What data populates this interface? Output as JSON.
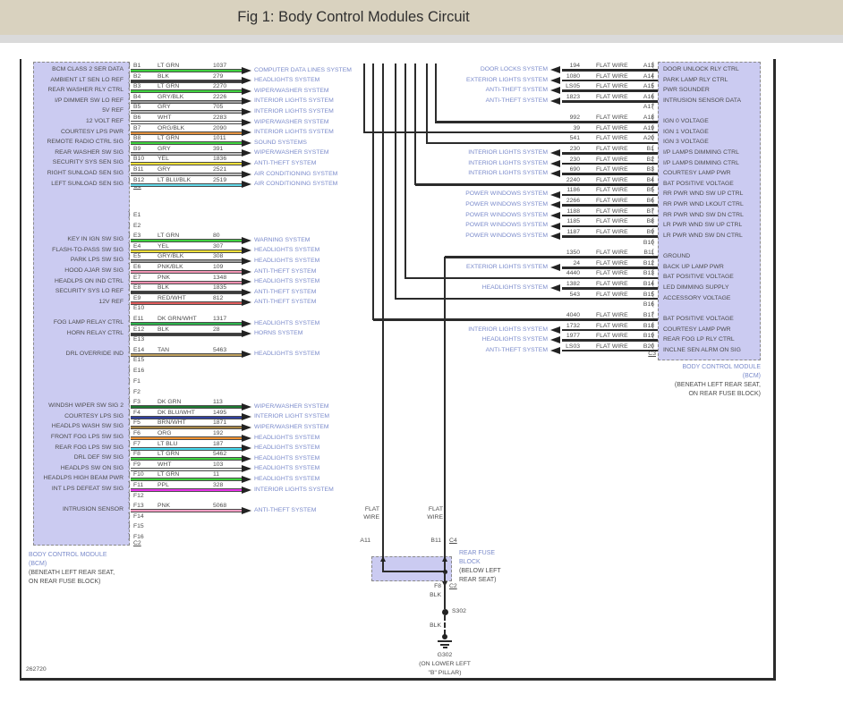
{
  "title": "Fig 1: Body Control Modules Circuit",
  "figure_id": "262720",
  "colors": {
    "titlebar_bg": "#d9d2bf",
    "module_fill": "#cbcbf1",
    "module_border": "#8a8a8a",
    "system_label_blue": "#7b8bcb",
    "text_dark": "#4c4c4c",
    "wire_black": "#2b2b2b"
  },
  "left_module": {
    "name_lines": [
      "BODY CONTROL MODULE",
      "(BCM)"
    ],
    "location_lines": [
      "(BENEATH LEFT REAR SEAT,",
      "ON REAR FUSE BLOCK)"
    ],
    "connector_b_label": "C1",
    "connector_ef_label": "C2",
    "rows_b": [
      {
        "pin": "B1",
        "label": "BCM CLASS 2 SER DATA",
        "color_name": "LT GRN",
        "wire_no": "1037",
        "color": "#3fd23f",
        "system": "COMPUTER DATA LINES SYSTEM"
      },
      {
        "pin": "B2",
        "label": "AMBIENT LT SEN LO REF",
        "color_name": "BLK",
        "wire_no": "279",
        "color": "#3c3c3c",
        "system": "HEADLIGHTS SYSTEM"
      },
      {
        "pin": "B3",
        "label": "REAR WASHER RLY CTRL",
        "color_name": "LT GRN",
        "wire_no": "2270",
        "color": "#3fd23f",
        "system": "WIPER/WASHER SYSTEM"
      },
      {
        "pin": "B4",
        "label": "I/P DIMMER SW LO REF",
        "color_name": "GRY/BLK",
        "wire_no": "2226",
        "color": "#9c9c9c",
        "system": "INTERIOR LIGHTS SYSTEM"
      },
      {
        "pin": "B5",
        "label": "5V REF",
        "color_name": "GRY",
        "wire_no": "705",
        "color": "#bdbdbd",
        "system": "INTERIOR LIGHTS SYSTEM"
      },
      {
        "pin": "B6",
        "label": "12 VOLT REF",
        "color_name": "WHT",
        "wire_no": "2283",
        "color": "#ededed",
        "system": "WIPER/WASHER SYSTEM"
      },
      {
        "pin": "B7",
        "label": "COURTESY LPS PWR",
        "color_name": "ORG/BLK",
        "wire_no": "2090",
        "color": "#e2913f",
        "system": "INTERIOR LIGHTS SYSTEM"
      },
      {
        "pin": "B8",
        "label": "REMOTE RADIO CTRL SIG",
        "color_name": "LT GRN",
        "wire_no": "1011",
        "color": "#3fd23f",
        "system": "SOUND SYSTEMS"
      },
      {
        "pin": "B9",
        "label": "REAR WASHER SW SIG",
        "color_name": "GRY",
        "wire_no": "391",
        "color": "#bdbdbd",
        "system": "WIPER/WASHER SYSTEM"
      },
      {
        "pin": "B10",
        "label": "SECURITY SYS SEN SIG",
        "color_name": "YEL",
        "wire_no": "1836",
        "color": "#f0e03a",
        "system": "ANTI-THEFT SYSTEM"
      },
      {
        "pin": "B11",
        "label": "RIGHT SUNLOAD SEN SIG",
        "color_name": "GRY",
        "wire_no": "2521",
        "color": "#bdbdbd",
        "system": "AIR CONDITIONING SYSTEM"
      },
      {
        "pin": "B12",
        "label": "LEFT SUNLOAD SEN SIG",
        "color_name": "LT BLU/BLK",
        "wire_no": "2519",
        "color": "#62d9e9",
        "system": "AIR CONDITIONING SYSTEM"
      }
    ],
    "rows_e": [
      {
        "pin": "E1"
      },
      {
        "pin": "E2"
      },
      {
        "pin": "E3",
        "label": "KEY IN IGN SW SIG",
        "color_name": "LT GRN",
        "wire_no": "80",
        "color": "#3fd23f",
        "system": "WARNING SYSTEM"
      },
      {
        "pin": "E4",
        "label": "FLASH-TO-PASS SW SIG",
        "color_name": "YEL",
        "wire_no": "307",
        "color": "#f0e03a",
        "system": "HEADLIGHTS SYSTEM"
      },
      {
        "pin": "E5",
        "label": "PARK LPS SW SIG",
        "color_name": "GRY/BLK",
        "wire_no": "308",
        "color": "#9c9c9c",
        "system": "HEADLIGHTS SYSTEM"
      },
      {
        "pin": "E6",
        "label": "HOOD AJAR SW SIG",
        "color_name": "PNK/BLK",
        "wire_no": "109",
        "color": "#f295b5",
        "system": "ANTI-THEFT SYSTEM"
      },
      {
        "pin": "E7",
        "label": "HEADLPS ON IND CTRL",
        "color_name": "PNK",
        "wire_no": "1348",
        "color": "#f58fb0",
        "system": "HEADLIGHTS SYSTEM"
      },
      {
        "pin": "E8",
        "label": "SECURITY SYS LO REF",
        "color_name": "BLK",
        "wire_no": "1835",
        "color": "#3c3c3c",
        "system": "ANTI-THEFT SYSTEM"
      },
      {
        "pin": "E9",
        "label": "12V REF",
        "color_name": "RED/WHT",
        "wire_no": "812",
        "color": "#e05c5c",
        "system": "ANTI-THEFT SYSTEM"
      },
      {
        "pin": "E10"
      },
      {
        "pin": "E11",
        "label": "FOG LAMP RELAY CTRL",
        "color_name": "DK GRN/WHT",
        "wire_no": "1317",
        "color": "#2db44d",
        "system": "HEADLIGHTS SYSTEM"
      },
      {
        "pin": "E12",
        "label": "HORN RELAY CTRL",
        "color_name": "BLK",
        "wire_no": "28",
        "color": "#3c3c3c",
        "system": "HORNS SYSTEM"
      },
      {
        "pin": "E13"
      },
      {
        "pin": "E14",
        "label": "DRL OVERRIDE IND",
        "color_name": "TAN",
        "wire_no": "5463",
        "color": "#bfa05e",
        "system": "HEADLIGHTS SYSTEM"
      },
      {
        "pin": "E15"
      },
      {
        "pin": "E16"
      }
    ],
    "rows_f": [
      {
        "pin": "F1"
      },
      {
        "pin": "F2"
      },
      {
        "pin": "F3",
        "label": "WINDSH WIPER SW SIG 2",
        "color_name": "DK GRN",
        "wire_no": "113",
        "color": "#1e7a32",
        "system": "WIPER/WASHER SYSTEM"
      },
      {
        "pin": "F4",
        "label": "COURTESY LPS SIG",
        "color_name": "DK BLU/WHT",
        "wire_no": "1495",
        "color": "#30409f",
        "system": "INTERIOR LIGHT SYSTEM"
      },
      {
        "pin": "F5",
        "label": "HEADLPS WASH SW SIG",
        "color_name": "BRN/WHT",
        "wire_no": "1871",
        "color": "#a58445",
        "system": "WIPER/WASHER SYSTEM"
      },
      {
        "pin": "F6",
        "label": "FRONT FOG LPS SW SIG",
        "color_name": "ORG",
        "wire_no": "192",
        "color": "#f09232",
        "system": "HEADLIGHTS SYSTEM"
      },
      {
        "pin": "F7",
        "label": "REAR FOG LPS SW SIG",
        "color_name": "LT BLU",
        "wire_no": "187",
        "color": "#45d9ef",
        "system": "HEADLIGHTS SYSTEM"
      },
      {
        "pin": "F8",
        "label": "DRL DEF SW SIG",
        "color_name": "LT GRN",
        "wire_no": "5462",
        "color": "#3fd23f",
        "system": "HEADLIGHTS SYSTEM"
      },
      {
        "pin": "F9",
        "label": "HEADLPS SW ON SIG",
        "color_name": "WHT",
        "wire_no": "103",
        "color": "#ededed",
        "system": "HEADLIGHTS SYSTEM"
      },
      {
        "pin": "F10",
        "label": "HEADLPS HIGH BEAM PWR",
        "color_name": "LT GRN",
        "wire_no": "11",
        "color": "#3fd23f",
        "system": "HEADLIGHTS SYSTEM"
      },
      {
        "pin": "F11",
        "label": "INT LPS DEFEAT SW SIG",
        "color_name": "PPL",
        "wire_no": "328",
        "color": "#ea33ea",
        "system": "INTERIOR LIGHTS SYSTEM"
      },
      {
        "pin": "F12"
      },
      {
        "pin": "F13",
        "label": "INTRUSION SENSOR",
        "color_name": "PNK",
        "wire_no": "5068",
        "color": "#ff9ec4",
        "system": "ANTI-THEFT SYSTEM"
      },
      {
        "pin": "F14"
      },
      {
        "pin": "F15"
      },
      {
        "pin": "F16"
      }
    ]
  },
  "right_module": {
    "name_lines": [
      "BODY CONTROL MODULE",
      "(BCM)"
    ],
    "location_lines": [
      "(BENEATH LEFT REAR SEAT,",
      "ON REAR FUSE BLOCK)"
    ],
    "connector_label": "C3",
    "wire_type": "FLAT WIRE",
    "rows": [
      {
        "pin": "A13",
        "wire_no": "194",
        "wire_type": "FLAT WIRE",
        "label": "DOOR UNLOCK RLY CTRL",
        "system": "DOOR LOCKS SYSTEM"
      },
      {
        "pin": "A14",
        "wire_no": "1080",
        "wire_type": "FLAT WIRE",
        "label": "PARK LAMP RLY CTRL",
        "system": "EXTERIOR LIGHTS SYSTEM"
      },
      {
        "pin": "A15",
        "wire_no": "LS05",
        "wire_type": "FLAT WIRE",
        "label": "PWR SOUNDER",
        "system": "ANTI-THEFT SYSTEM"
      },
      {
        "pin": "A16",
        "wire_no": "1823",
        "wire_type": "FLAT WIRE",
        "label": "INTRUSION SENSOR DATA",
        "system": "ANTI-THEFT SYSTEM"
      },
      {
        "pin": "A17"
      },
      {
        "pin": "A18",
        "wire_no": "992",
        "wire_type": "FLAT WIRE",
        "label": "IGN 0 VOLTAGE",
        "bus": true
      },
      {
        "pin": "A19",
        "wire_no": "39",
        "wire_type": "FLAT WIRE",
        "label": "IGN 1 VOLTAGE",
        "bus": true
      },
      {
        "pin": "A20",
        "wire_no": "541",
        "wire_type": "FLAT WIRE",
        "label": "IGN 3 VOLTAGE",
        "bus": true
      },
      {
        "pin": "B1",
        "wire_no": "230",
        "wire_type": "FLAT WIRE",
        "label": "I/P LAMPS DIMMING CTRL",
        "system": "INTERIOR LIGHTS SYSTEM"
      },
      {
        "pin": "B2",
        "wire_no": "230",
        "wire_type": "FLAT WIRE",
        "label": "I/P LAMPS DIMMING CTRL",
        "system": "INTERIOR LIGHTS SYSTEM"
      },
      {
        "pin": "B3",
        "wire_no": "690",
        "wire_type": "FLAT WIRE",
        "label": "COURTESY LAMP PWR",
        "system": "INTERIOR LIGHTS SYSTEM"
      },
      {
        "pin": "B4",
        "wire_no": "2240",
        "wire_type": "FLAT WIRE",
        "label": "BAT POSITIVE VOLTAGE",
        "bus": true
      },
      {
        "pin": "B5",
        "wire_no": "1186",
        "wire_type": "FLAT WIRE",
        "label": "RR PWR WND SW UP CTRL",
        "system": "POWER WINDOWS SYSTEM"
      },
      {
        "pin": "B6",
        "wire_no": "2266",
        "wire_type": "FLAT WIRE",
        "label": "RR PWR WND LKOUT CTRL",
        "system": "POWER WINDOWS SYSTEM"
      },
      {
        "pin": "B7",
        "wire_no": "1188",
        "wire_type": "FLAT WIRE",
        "label": "RR PWR WND SW DN CTRL",
        "system": "POWER WINDOWS SYSTEM"
      },
      {
        "pin": "B8",
        "wire_no": "1185",
        "wire_type": "FLAT WIRE",
        "label": "LR PWR WND SW UP CTRL",
        "system": "POWER WINDOWS SYSTEM"
      },
      {
        "pin": "B9",
        "wire_no": "1187",
        "wire_type": "FLAT WIRE",
        "label": "LR PWR WND SW DN CTRL",
        "system": "POWER WINDOWS SYSTEM"
      },
      {
        "pin": "B10"
      },
      {
        "pin": "B11",
        "wire_no": "1350",
        "wire_type": "FLAT WIRE",
        "label": "GROUND",
        "bus": true
      },
      {
        "pin": "B12",
        "wire_no": "24",
        "wire_type": "FLAT WIRE",
        "label": "BACK UP LAMP PWR",
        "system": "EXTERIOR LIGHTS SYSTEM"
      },
      {
        "pin": "B13",
        "wire_no": "4440",
        "wire_type": "FLAT WIRE",
        "label": "BAT POSITIVE VOLTAGE",
        "bus": true
      },
      {
        "pin": "B14",
        "wire_no": "1382",
        "wire_type": "FLAT WIRE",
        "label": "LED DIMMING SUPPLY",
        "system": "HEADLIGHTS SYSTEM"
      },
      {
        "pin": "B15",
        "wire_no": "543",
        "wire_type": "FLAT WIRE",
        "label": "ACCESSORY VOLTAGE",
        "bus": true
      },
      {
        "pin": "B16"
      },
      {
        "pin": "B17",
        "wire_no": "4040",
        "wire_type": "FLAT WIRE",
        "label": "BAT POSITIVE VOLTAGE",
        "bus": true
      },
      {
        "pin": "B18",
        "wire_no": "1732",
        "wire_type": "FLAT WIRE",
        "label": "COURTESY LAMP PWR",
        "system": "INTERIOR LIGHTS SYSTEM"
      },
      {
        "pin": "B19",
        "wire_no": "1977",
        "wire_type": "FLAT WIRE",
        "label": "REAR FOG LP RLY CTRL",
        "system": "HEADLIGHTS SYSTEM"
      },
      {
        "pin": "B20",
        "wire_no": "LS03",
        "wire_type": "FLAT WIRE",
        "label": "INCLNE SEN ALRM ON SIG",
        "system": "ANTI-THEFT SYSTEM"
      }
    ]
  },
  "fuse_block": {
    "name_lines": [
      "REAR FUSE",
      "BLOCK"
    ],
    "location_lines": [
      "(BELOW LEFT",
      "REAR SEAT)"
    ],
    "pin_top_left": "A11",
    "pin_top_right": "B11",
    "connector_top": "C4",
    "pin_bottom": "F8",
    "connector_bottom": "C2",
    "flat_wire_lines": [
      "FLAT",
      "WIRE"
    ],
    "below": {
      "wire_color_1": "BLK",
      "splice": "S302",
      "wire_color_2": "BLK",
      "ground": "G302",
      "ground_location_lines": [
        "(ON LOWER LEFT",
        "\"B\" PILLAR)"
      ]
    }
  }
}
